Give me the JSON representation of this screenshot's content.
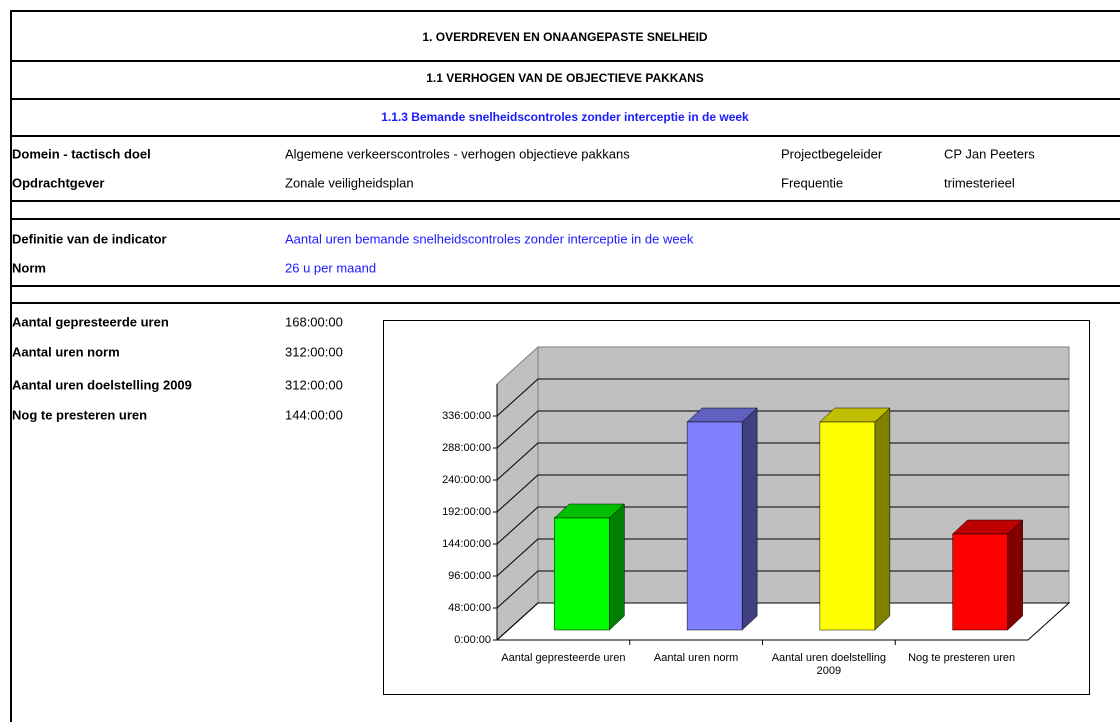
{
  "title": "1. OVERDREVEN EN ONAANGEPASTE SNELHEID",
  "subtitle": "1.1 VERHOGEN VAN DE OBJECTIEVE PAKKANS",
  "section": "1.1.3 Bemande snelheidscontroles zonder interceptie in de week",
  "info": [
    [
      "Domein - tactisch doel",
      "Algemene verkeerscontroles - verhogen objectieve pakkans",
      "Projectbegeleider",
      "CP Jan Peeters"
    ],
    [
      "Opdrachtgever",
      "Zonale veiligheidsplan",
      "Frequentie",
      "trimesterieel"
    ]
  ],
  "indicator": [
    [
      "Definitie van de indicator",
      "Aantal uren bemande snelheidscontroles zonder interceptie in de week"
    ],
    [
      "Norm",
      "26 u per maand"
    ]
  ],
  "hours": [
    [
      "Aantal gepresteerde uren",
      "168:00:00"
    ],
    [
      "Aantal uren norm",
      "312:00:00"
    ],
    [
      "Aantal uren doelstelling 2009",
      "312:00:00"
    ],
    [
      "Nog te presteren uren",
      "144:00:00"
    ]
  ],
  "chart_data": {
    "type": "bar",
    "categories": [
      "Aantal gepresteerde uren",
      "Aantal uren norm",
      "Aantal uren doelstelling 2009",
      "Nog te presteren uren"
    ],
    "values": [
      168,
      312,
      312,
      144
    ],
    "colors": [
      "#00ff00",
      "#8080ff",
      "#ffff00",
      "#ff0000"
    ],
    "ylim": [
      0,
      384
    ],
    "yticks": [
      {
        "value": 0,
        "label": "0:00:00"
      },
      {
        "value": 48,
        "label": "48:00:00"
      },
      {
        "value": 96,
        "label": "96:00:00"
      },
      {
        "value": 144,
        "label": "144:00:00"
      },
      {
        "value": 192,
        "label": "192:00:00"
      },
      {
        "value": 240,
        "label": "240:00:00"
      },
      {
        "value": 288,
        "label": "288:00:00"
      },
      {
        "value": 336,
        "label": "336:00:00"
      }
    ],
    "grid": true
  }
}
